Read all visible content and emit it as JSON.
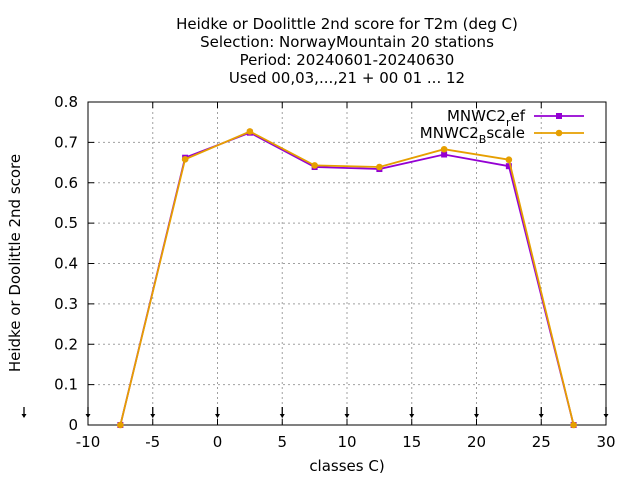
{
  "chart_data": {
    "type": "line",
    "title_lines": [
      "Heidke or Doolittle 2nd score  for T2m (deg C)",
      "Selection: NorwayMountain     20 stations",
      "Period: 20240601-20240630",
      "Used 00,03,...,21 + 00 01 ... 12"
    ],
    "xlabel": "classes C)",
    "ylabel": "Heidke or Doolittle 2nd score",
    "xlim": [
      -10,
      30
    ],
    "ylim": [
      0,
      0.8
    ],
    "xticks": [
      -10,
      -5,
      0,
      5,
      10,
      15,
      20,
      25,
      30
    ],
    "yticks": [
      0,
      0.1,
      0.2,
      0.3,
      0.4,
      0.5,
      0.6,
      0.7,
      0.8
    ],
    "xtick_labels": [
      "-10",
      "-5",
      "0",
      "5",
      "10",
      "15",
      "20",
      "25",
      "30"
    ],
    "ytick_labels": [
      "0",
      "0.1",
      "0.2",
      "0.3",
      "0.4",
      "0.5",
      "0.6",
      "0.7",
      "0.8"
    ],
    "grid": true,
    "legend_position": "top-right",
    "class_markers_x": [
      -10,
      -5,
      0,
      5,
      10,
      15,
      20,
      25,
      30
    ],
    "series": [
      {
        "name_main": "MNWC2",
        "name_sub": "r",
        "name_rest": "ef",
        "color": "#9400d3",
        "marker": "filled-square",
        "x": [
          -7.5,
          -2.5,
          2.5,
          7.5,
          12.5,
          17.5,
          22.5,
          27.5
        ],
        "y": [
          0.0,
          0.662,
          0.724,
          0.639,
          0.634,
          0.67,
          0.641,
          0.0
        ]
      },
      {
        "name_main": "MNWC2",
        "name_sub": "B",
        "name_rest": "scale",
        "color": "#e69f00",
        "marker": "filled-circle",
        "x": [
          -7.5,
          -2.5,
          2.5,
          7.5,
          12.5,
          17.5,
          22.5,
          27.5
        ],
        "y": [
          0.0,
          0.658,
          0.727,
          0.643,
          0.639,
          0.683,
          0.657,
          0.0
        ]
      }
    ]
  }
}
